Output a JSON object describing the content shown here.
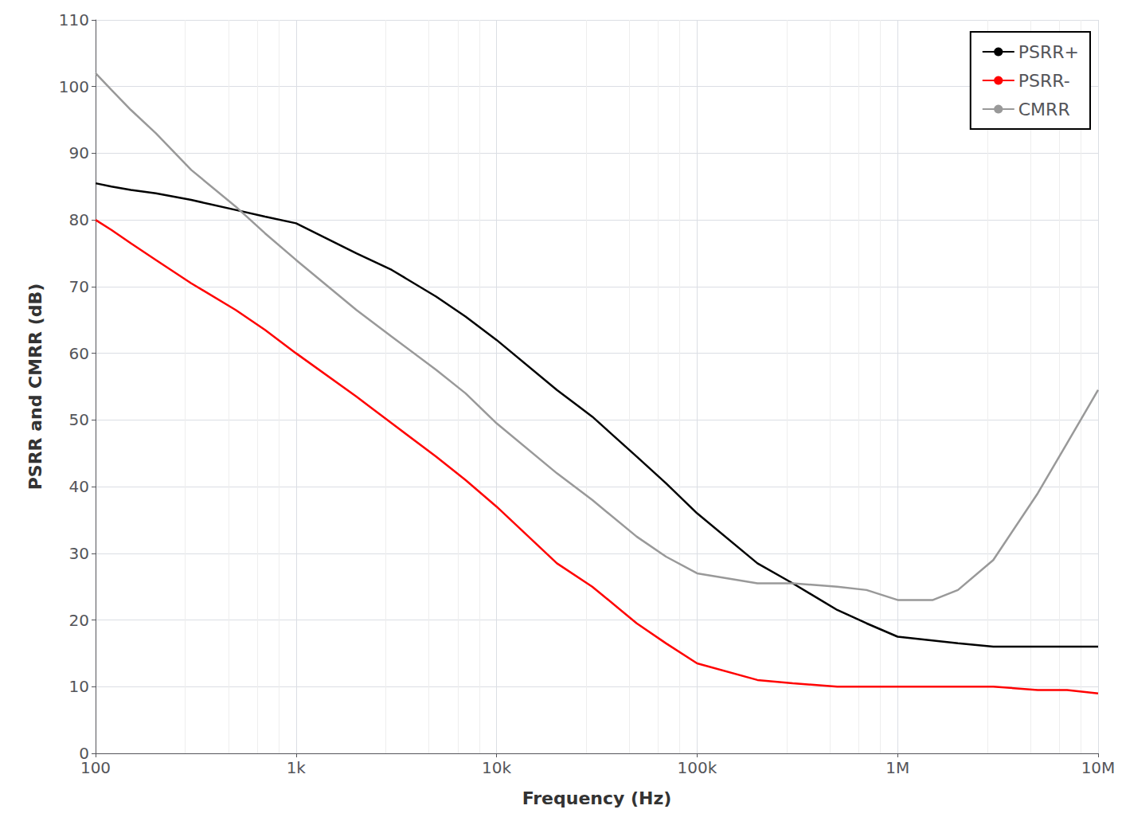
{
  "chart_data": {
    "type": "line",
    "xlabel": "Frequency (Hz)",
    "ylabel": "PSRR and CMRR (dB)",
    "log": "x",
    "xlim": [
      100,
      10000000
    ],
    "xticks": [
      100,
      {
        "value": 1000,
        "label": "1k"
      },
      {
        "value": 10000,
        "label": "10k"
      },
      {
        "value": 100000,
        "label": "100k"
      },
      {
        "value": 1000000,
        "label": "1M"
      },
      {
        "value": 10000000,
        "label": "10M"
      }
    ],
    "ylim": [
      0,
      110
    ],
    "yticks": [
      0,
      10,
      20,
      30,
      40,
      50,
      60,
      70,
      80,
      90,
      100,
      110
    ],
    "grid": true,
    "legend": "upper right",
    "series": [
      {
        "name": "PSRR+",
        "color": "#000000",
        "x": [
          100,
          120,
          150,
          200,
          300,
          500,
          700,
          1000,
          2000,
          3000,
          5000,
          7000,
          10000,
          20000,
          30000,
          50000,
          70000,
          100000,
          200000,
          300000,
          500000,
          700000,
          1000000,
          2000000,
          3000000,
          5000000,
          7000000,
          10000000
        ],
        "values": [
          85.5,
          85.0,
          84.5,
          84.0,
          83.0,
          81.5,
          80.5,
          79.5,
          75.0,
          72.5,
          68.5,
          65.5,
          62.0,
          54.5,
          50.5,
          44.5,
          40.5,
          36.0,
          28.5,
          25.5,
          21.5,
          19.5,
          17.5,
          16.5,
          16.0,
          16.0,
          16.0,
          16.0
        ]
      },
      {
        "name": "PSRR-",
        "color": "#ff0000",
        "x": [
          100,
          120,
          150,
          200,
          300,
          500,
          700,
          1000,
          2000,
          3000,
          5000,
          7000,
          10000,
          20000,
          30000,
          50000,
          70000,
          100000,
          200000,
          300000,
          500000,
          700000,
          1000000,
          2000000,
          3000000,
          5000000,
          7000000,
          10000000
        ],
        "values": [
          80.0,
          78.5,
          76.5,
          74.0,
          70.5,
          66.5,
          63.5,
          60.0,
          53.5,
          49.5,
          44.5,
          41.0,
          37.0,
          28.5,
          25.0,
          19.5,
          16.5,
          13.5,
          11.0,
          10.5,
          10.0,
          10.0,
          10.0,
          10.0,
          10.0,
          9.5,
          9.5,
          9.0
        ]
      },
      {
        "name": "CMRR",
        "color": "#999999",
        "x": [
          100,
          120,
          150,
          200,
          300,
          500,
          700,
          1000,
          2000,
          3000,
          5000,
          7000,
          10000,
          20000,
          30000,
          50000,
          70000,
          100000,
          200000,
          300000,
          500000,
          700000,
          1000000,
          1500000,
          2000000,
          3000000,
          5000000,
          7000000,
          10000000
        ],
        "values": [
          102.0,
          99.5,
          96.5,
          93.0,
          87.5,
          82.0,
          78.0,
          74.0,
          66.5,
          62.5,
          57.5,
          54.0,
          49.5,
          42.0,
          38.0,
          32.5,
          29.5,
          27.0,
          25.5,
          25.5,
          25.0,
          24.5,
          23.0,
          23.0,
          24.5,
          29.0,
          39.0,
          46.5,
          54.5
        ]
      }
    ]
  }
}
